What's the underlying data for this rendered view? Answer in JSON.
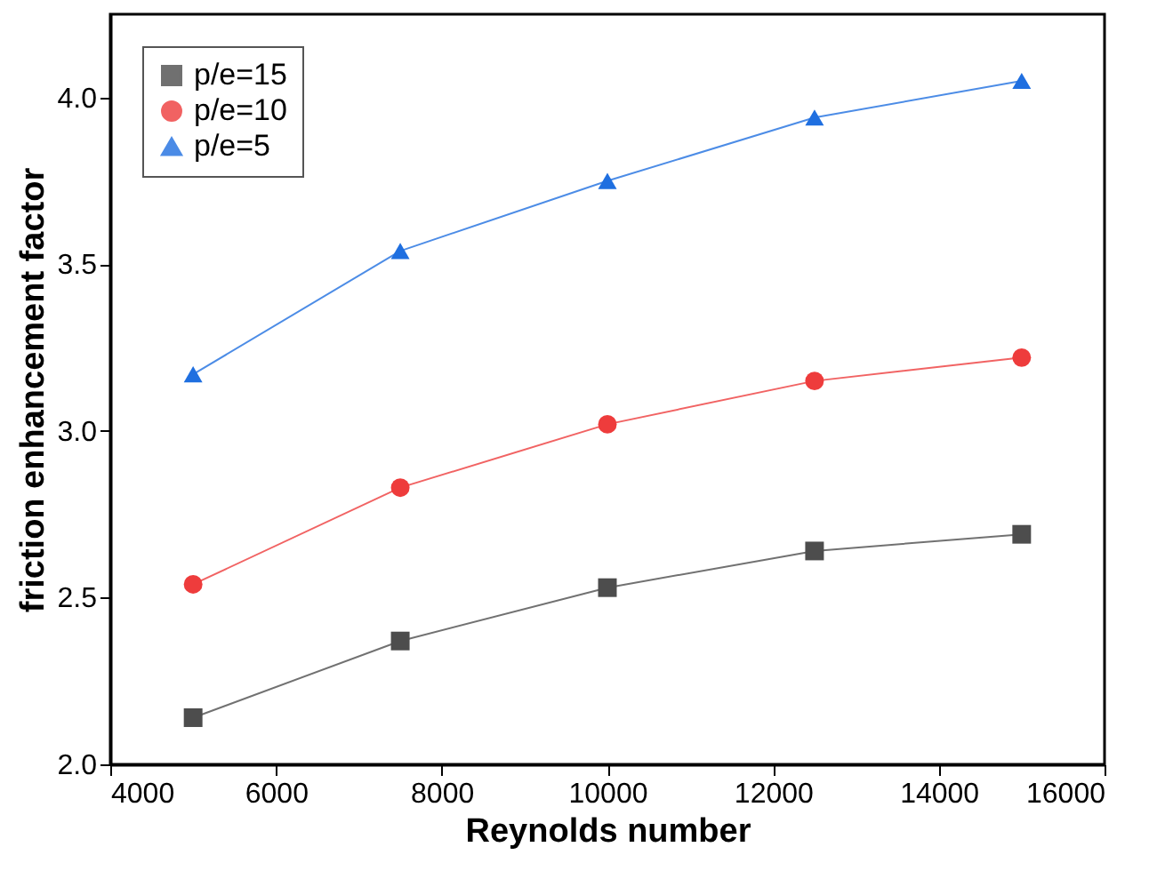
{
  "chart_data": {
    "type": "line",
    "xlabel": "Reynolds number",
    "ylabel": "friction enhancement factor",
    "x": [
      5000,
      7500,
      10000,
      12500,
      15000
    ],
    "series": [
      {
        "name": "p/e=15",
        "color": "#4d4d4d",
        "marker": "square",
        "values": [
          2.14,
          2.37,
          2.53,
          2.64,
          2.69
        ]
      },
      {
        "name": "p/e=10",
        "color": "#ee3c3c",
        "marker": "circle",
        "values": [
          2.54,
          2.83,
          3.02,
          3.15,
          3.22
        ]
      },
      {
        "name": "p/e=5",
        "color": "#1f6fe0",
        "marker": "triangle",
        "values": [
          3.17,
          3.54,
          3.75,
          3.94,
          4.05
        ]
      }
    ],
    "xlim": [
      4000,
      16000
    ],
    "xticks": [
      4000,
      6000,
      8000,
      10000,
      12000,
      14000,
      16000
    ],
    "ylim": [
      2.0,
      4.25
    ],
    "yticks": [
      {
        "value": 2.0,
        "label": "2.0"
      },
      {
        "value": 2.5,
        "label": "2.5"
      },
      {
        "value": 3.0,
        "label": "3.0"
      },
      {
        "value": 3.5,
        "label": "3.5"
      },
      {
        "value": 4.0,
        "label": "4.0"
      }
    ],
    "grid": false,
    "legend": "top left",
    "line_style": "solid"
  }
}
